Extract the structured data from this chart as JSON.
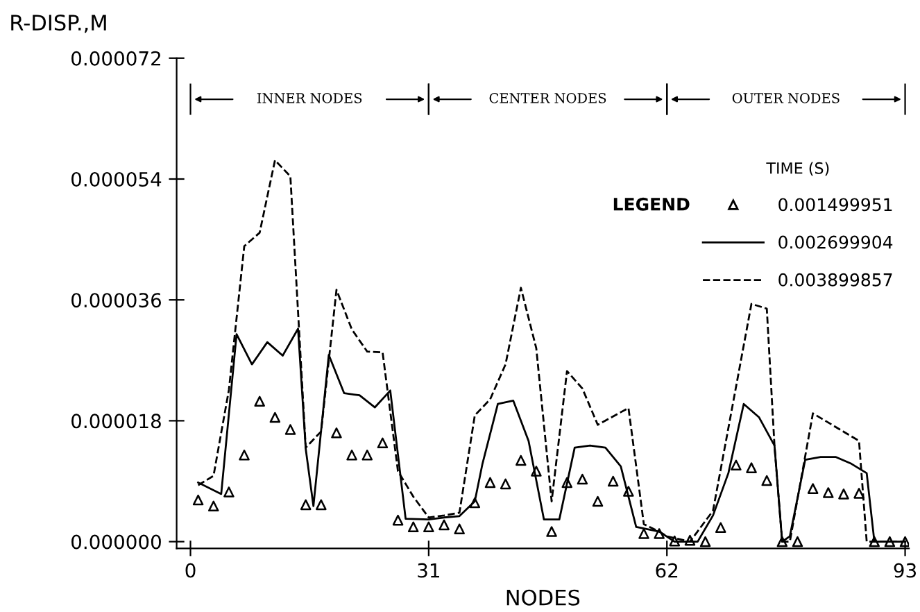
{
  "chart_data": {
    "type": "line",
    "xlabel": "NODES",
    "ylabel": "R-DISP.,M",
    "legend_title": "TIME (S)",
    "annotations": [
      "INNER NODES",
      "CENTER NODES",
      "OUTER NODES",
      "LEGEND"
    ],
    "xlim": [
      -1.8,
      93.5
    ],
    "xticks": [
      0,
      31,
      62,
      93
    ],
    "ylim": [
      -1e-06,
      7.2e-05
    ],
    "yticks": [
      {
        "value": 0,
        "label": "0.000000"
      },
      {
        "value": 1.8e-05,
        "label": "0.000018"
      },
      {
        "value": 3.6e-05,
        "label": "0.000036"
      },
      {
        "value": 5.4e-05,
        "label": "0.000054"
      },
      {
        "value": 7.2e-05,
        "label": "0.000072"
      }
    ],
    "grid": false,
    "legend": "top right",
    "series": [
      {
        "name": "0.001499951",
        "color": "#000000",
        "type": "scatter",
        "marker": "triangle",
        "x": [
          1,
          3,
          5,
          7,
          9,
          11,
          13,
          15,
          17,
          19,
          21,
          23,
          25,
          27,
          29,
          31,
          33,
          35,
          37,
          39,
          41,
          43,
          45,
          47,
          49,
          51,
          53,
          55,
          57,
          59,
          61,
          63,
          65,
          67,
          69,
          71,
          73,
          75,
          77,
          79,
          81,
          83,
          85,
          87,
          89,
          91,
          93
        ],
        "values": [
          6.2e-06,
          5.3e-06,
          7.4e-06,
          1.29e-05,
          2.09e-05,
          1.85e-05,
          1.67e-05,
          5.5e-06,
          5.5e-06,
          1.62e-05,
          1.29e-05,
          1.29e-05,
          1.47e-05,
          3.2e-06,
          2.2e-06,
          2.2e-06,
          2.5e-06,
          1.9e-06,
          5.8e-06,
          8.8e-06,
          8.6e-06,
          1.21e-05,
          1.05e-05,
          1.5e-06,
          8.8e-06,
          9.3e-06,
          6e-06,
          9e-06,
          7.5e-06,
          1.2e-06,
          1.2e-06,
          1e-07,
          2e-07,
          0,
          2.1e-06,
          1.14e-05,
          1.1e-05,
          9.1e-06,
          0,
          0,
          7.9e-06,
          7.3e-06,
          7.1e-06,
          7.2e-06,
          0,
          0,
          0
        ]
      },
      {
        "name": "0.002699904",
        "color": "#000000",
        "type": "line",
        "line_style": "solid",
        "x": [
          1,
          4,
          6,
          8,
          10,
          12,
          14,
          15,
          16,
          18,
          20,
          22,
          24,
          26,
          28,
          31,
          33,
          35,
          37,
          38,
          40,
          42,
          44,
          46,
          48,
          50,
          52,
          54,
          56,
          58,
          61,
          63,
          66,
          68,
          70,
          72,
          74,
          76,
          77,
          78,
          80,
          82,
          84,
          86,
          88,
          89,
          93
        ],
        "values": [
          8.8e-06,
          7.1e-06,
          3.09e-05,
          2.64e-05,
          2.97e-05,
          2.77e-05,
          3.17e-05,
          1.38e-05,
          5.3e-06,
          2.78e-05,
          2.21e-05,
          2.18e-05,
          2e-05,
          2.25e-05,
          3.4e-06,
          3.3e-06,
          3.6e-06,
          3.8e-06,
          6e-06,
          1.16e-05,
          2.05e-05,
          2.1e-05,
          1.5e-05,
          3.3e-06,
          3.3e-06,
          1.4e-05,
          1.43e-05,
          1.4e-05,
          1.12e-05,
          2.2e-06,
          1.5e-06,
          0,
          0,
          3.9e-06,
          1.02e-05,
          2.05e-05,
          1.85e-05,
          1.43e-05,
          0,
          8e-07,
          1.22e-05,
          1.26e-05,
          1.26e-05,
          1.16e-05,
          1.02e-05,
          0,
          0
        ]
      },
      {
        "name": "0.003899857",
        "color": "#000000",
        "type": "line",
        "line_style": "dashed",
        "x": [
          1,
          3,
          5,
          7,
          9,
          11,
          13,
          15,
          17,
          19,
          21,
          23,
          25,
          27,
          29,
          31,
          33,
          35,
          37,
          39,
          41,
          43,
          45,
          47,
          49,
          51,
          53,
          57,
          59,
          61,
          62,
          65,
          68,
          73,
          75,
          76,
          77,
          78,
          81,
          87,
          88,
          93
        ],
        "values": [
          8.4e-06,
          9.8e-06,
          2.26e-05,
          4.4e-05,
          4.6e-05,
          5.68e-05,
          5.44e-05,
          1.4e-05,
          1.64e-05,
          3.75e-05,
          3.16e-05,
          2.83e-05,
          2.82e-05,
          1.05e-05,
          6.7e-06,
          3.6e-06,
          3.9e-06,
          4.3e-06,
          1.88e-05,
          2.12e-05,
          2.64e-05,
          3.78e-05,
          2.88e-05,
          6e-06,
          2.54e-05,
          2.28e-05,
          1.74e-05,
          1.99e-05,
          2.6e-06,
          1.5e-06,
          8e-07,
          0,
          4.6e-06,
          3.54e-05,
          3.47e-05,
          1.43e-05,
          0,
          0,
          1.91e-05,
          1.5e-05,
          0,
          0
        ]
      }
    ]
  }
}
